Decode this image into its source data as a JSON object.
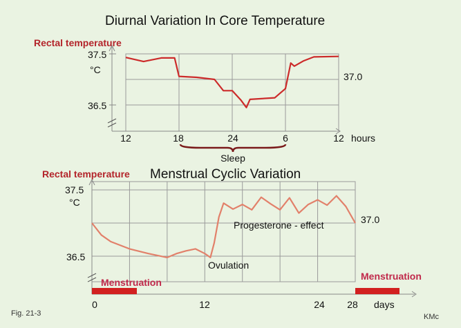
{
  "chart_data": [
    {
      "type": "line",
      "title": "Diurnal Variation In  Core  Temperature",
      "ylabel": "Rectal temperature",
      "y_unit": "°C",
      "x_unit": "hours",
      "x_ticks": [
        "12",
        "18",
        "24",
        "6",
        "12"
      ],
      "y_ticks": [
        "37.5",
        "36.5"
      ],
      "right_label": "37.0",
      "ylim": [
        36.5,
        37.5
      ],
      "annotation": "Sleep",
      "series": [
        {
          "x": [
            12,
            14,
            16,
            17.5,
            18,
            20,
            22,
            23,
            24,
            25,
            25.6,
            26,
            28.8,
            30,
            30.6,
            31,
            32,
            33.2,
            36
          ],
          "y": [
            37.43,
            37.35,
            37.42,
            37.42,
            37.06,
            37.04,
            37.0,
            36.78,
            36.78,
            36.59,
            36.45,
            36.61,
            36.64,
            36.82,
            37.32,
            37.26,
            37.36,
            37.44,
            37.45
          ]
        }
      ],
      "color": "#cc2a2a",
      "grid": true
    },
    {
      "type": "line",
      "title": "Menstrual Cyclic Variation",
      "ylabel": "Rectal temperature",
      "y_unit": "°C",
      "x_unit": "days",
      "x_ticks": [
        "0",
        "12",
        "24",
        "28"
      ],
      "y_ticks": [
        "37.5",
        "36.5"
      ],
      "right_label": "37.0",
      "ylim": [
        36.5,
        37.5
      ],
      "annotations": [
        "Ovulation",
        "Progesterone - effect"
      ],
      "band_label": "Menstruation",
      "band_label_end": "Menstruation",
      "series": [
        {
          "x": [
            0,
            1,
            2,
            4,
            6,
            8,
            9,
            10,
            11,
            12,
            12.6,
            13,
            13.5,
            14,
            15,
            16,
            17,
            18,
            19,
            20,
            21,
            22,
            23,
            24,
            25,
            26,
            27,
            28
          ],
          "y": [
            37.0,
            36.82,
            36.72,
            36.61,
            36.54,
            36.48,
            36.54,
            36.58,
            36.61,
            36.54,
            36.48,
            36.7,
            37.09,
            37.3,
            37.21,
            37.28,
            37.2,
            37.39,
            37.29,
            37.2,
            37.38,
            37.15,
            37.28,
            37.35,
            37.27,
            37.41,
            37.25,
            37.0
          ]
        }
      ],
      "color": "#e2806a",
      "grid": true
    }
  ],
  "footer": {
    "fig": "Fig. 21-3",
    "author": "KMc"
  }
}
